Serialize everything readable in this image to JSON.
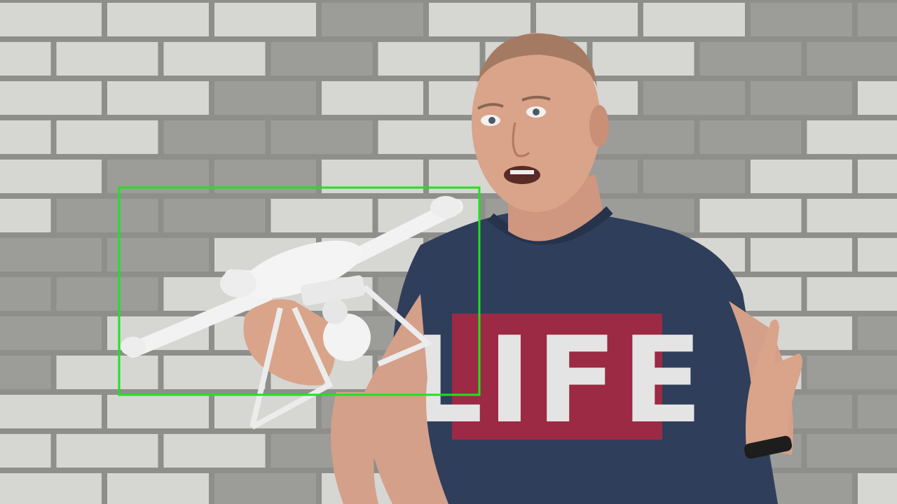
{
  "scene": {
    "description_free": true,
    "shirt_print": "LIFE",
    "colors": {
      "wall_mortar": "#8e8e8b",
      "wall_brick_light": "#d6d6d3",
      "wall_brick_dark": "#9c9c99",
      "shirt": "#2f3e5a",
      "shirt_print_bg": "#9c2a44",
      "shirt_print_text": "#e4e4e4",
      "skin": "#d9a489",
      "drone": "#f2f2f2",
      "detection_box": "#22e022"
    }
  },
  "detection": {
    "label": "",
    "color": "#22e022",
    "target": "drone"
  }
}
